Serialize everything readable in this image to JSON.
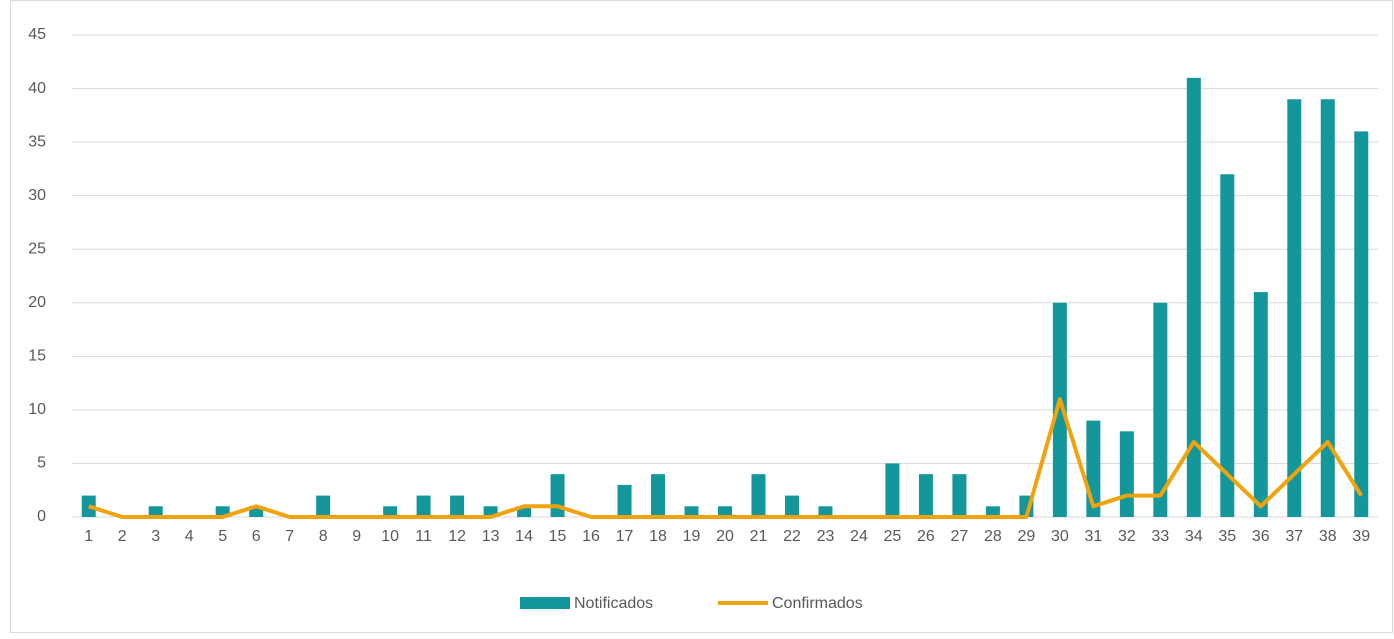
{
  "chart_data": {
    "type": "combo",
    "categories": [
      1,
      2,
      3,
      4,
      5,
      6,
      7,
      8,
      9,
      10,
      11,
      12,
      13,
      14,
      15,
      16,
      17,
      18,
      19,
      20,
      21,
      22,
      23,
      24,
      25,
      26,
      27,
      28,
      29,
      30,
      31,
      32,
      33,
      34,
      35,
      36,
      37,
      38,
      39
    ],
    "series": [
      {
        "name": "Notificados",
        "type": "bar",
        "color": "#14979a",
        "values": [
          2,
          0,
          1,
          0,
          1,
          1,
          0,
          2,
          0,
          1,
          2,
          2,
          1,
          1,
          4,
          0,
          3,
          4,
          1,
          1,
          4,
          2,
          1,
          0,
          5,
          4,
          4,
          1,
          2,
          20,
          9,
          8,
          20,
          41,
          32,
          21,
          39,
          39,
          36
        ]
      },
      {
        "name": "Confirmados",
        "type": "line",
        "color": "#f0a30a",
        "values": [
          1,
          0,
          0,
          0,
          0,
          1,
          0,
          0,
          0,
          0,
          0,
          0,
          0,
          1,
          1,
          0,
          0,
          0,
          0,
          0,
          0,
          0,
          0,
          0,
          0,
          0,
          0,
          0,
          0,
          11,
          1,
          2,
          2,
          7,
          4,
          1,
          4,
          7,
          2
        ]
      }
    ],
    "ylim": [
      0,
      45
    ],
    "yticks": [
      0,
      5,
      10,
      15,
      20,
      25,
      30,
      35,
      40,
      45
    ],
    "grid": true,
    "legend": "bottom"
  }
}
